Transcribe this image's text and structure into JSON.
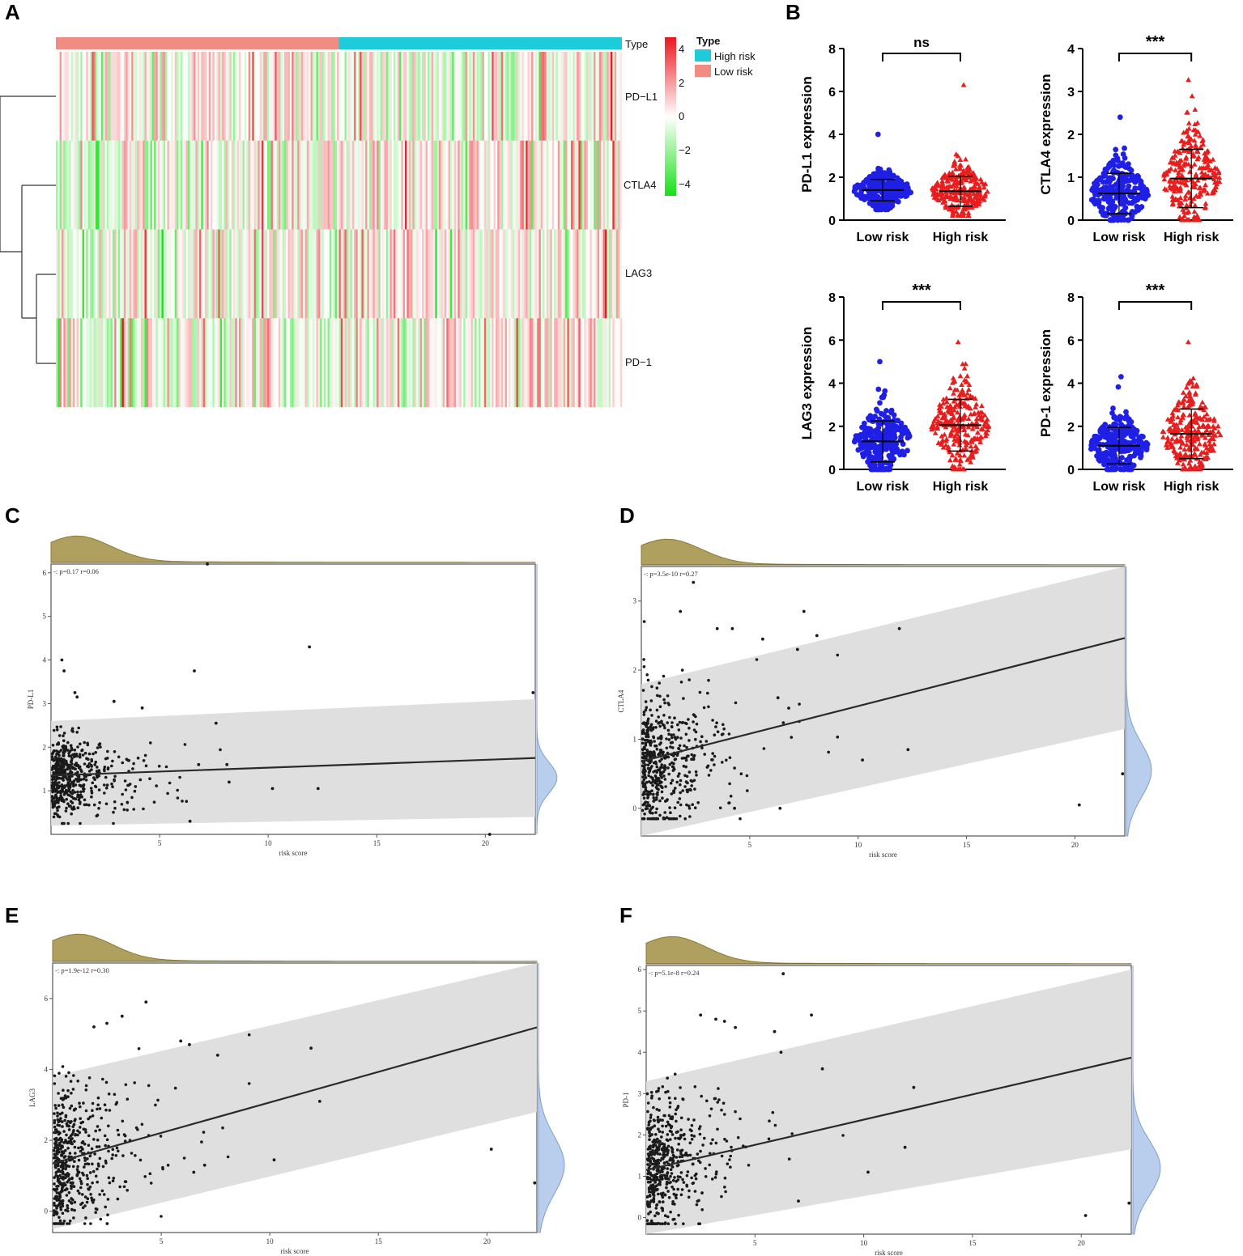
{
  "colors": {
    "low_risk": "#F08C84",
    "high_risk": "#1ECBD8",
    "heat_high": "#E8191E",
    "heat_mid": "#FFFFFF",
    "heat_low": "#18E018",
    "dot_low": "#1F1FE6",
    "dot_high": "#E81E1E",
    "density_top": "#B0A060",
    "density_right": "#B8CEEC",
    "band": "#DCDCDC"
  },
  "chart_data": [
    {
      "panel": "A",
      "type": "heatmap",
      "annotation_row_label": "Type",
      "rows": [
        "PD−L1",
        "CTLA4",
        "LAG3",
        "PD−1"
      ],
      "groups": [
        {
          "name": "Low risk",
          "fraction": 0.5
        },
        {
          "name": "High risk",
          "fraction": 0.5
        }
      ],
      "legend_title": "Type",
      "legend_entries": [
        "High risk",
        "Low risk"
      ],
      "colorbar_ticks": [
        "4",
        "2",
        "0",
        "−2",
        "−4"
      ],
      "colorbar_range": [
        -4.5,
        4.5
      ]
    },
    {
      "panel": "B",
      "type": "scatter",
      "subtype": "dot-plot",
      "ylabel": "PD-L1 expression",
      "categories": [
        "Low risk",
        "High risk"
      ],
      "ylim": [
        0,
        8
      ],
      "yticks": [
        "0",
        "2",
        "4",
        "6",
        "8"
      ],
      "significance": "ns",
      "groups": [
        {
          "name": "Low risk",
          "mean": 1.4,
          "sd": 0.5,
          "min": 0.5,
          "max": 4.0
        },
        {
          "name": "High risk",
          "mean": 1.35,
          "sd": 0.7,
          "min": 0.2,
          "max": 6.3
        }
      ]
    },
    {
      "panel": "B",
      "type": "scatter",
      "subtype": "dot-plot",
      "ylabel": "CTLA4 expression",
      "categories": [
        "Low risk",
        "High risk"
      ],
      "ylim": [
        0,
        4
      ],
      "yticks": [
        "0",
        "1",
        "2",
        "3",
        "4"
      ],
      "significance": "***",
      "groups": [
        {
          "name": "Low risk",
          "mean": 0.62,
          "sd": 0.47,
          "min": 0.0,
          "max": 2.4
        },
        {
          "name": "High risk",
          "mean": 0.97,
          "sd": 0.68,
          "min": 0.0,
          "max": 3.27
        }
      ]
    },
    {
      "panel": "B",
      "type": "scatter",
      "subtype": "dot-plot",
      "ylabel": "LAG3 expression",
      "categories": [
        "Low risk",
        "High risk"
      ],
      "ylim": [
        0,
        8
      ],
      "yticks": [
        "0",
        "2",
        "4",
        "6",
        "8"
      ],
      "significance": "***",
      "groups": [
        {
          "name": "Low risk",
          "mean": 1.3,
          "sd": 0.95,
          "min": 0.0,
          "max": 5.0
        },
        {
          "name": "High risk",
          "mean": 2.05,
          "sd": 1.2,
          "min": 0.0,
          "max": 5.9
        }
      ]
    },
    {
      "panel": "B",
      "type": "scatter",
      "subtype": "dot-plot",
      "ylabel": "PD-1 expression",
      "categories": [
        "Low risk",
        "High risk"
      ],
      "ylim": [
        0,
        8
      ],
      "yticks": [
        "0",
        "2",
        "4",
        "6",
        "8"
      ],
      "significance": "***",
      "groups": [
        {
          "name": "Low risk",
          "mean": 1.1,
          "sd": 0.85,
          "min": 0.0,
          "max": 4.3
        },
        {
          "name": "High risk",
          "mean": 1.65,
          "sd": 1.15,
          "min": 0.0,
          "max": 5.9
        }
      ]
    },
    {
      "panel": "C",
      "type": "scatter",
      "ylabel": "PD-L1",
      "xlabel": "risk score",
      "annotation": "-: p=0.17 r=0.06",
      "xlim": [
        0,
        22.3
      ],
      "ylim": [
        0,
        6.2
      ],
      "xticks": [
        "5",
        "10",
        "15",
        "20"
      ],
      "yticks": [
        "1",
        "2",
        "3",
        "4",
        "5",
        "6"
      ],
      "fit": {
        "intercept": 1.35,
        "slope": 0.018
      },
      "band": {
        "lower_intercept": 0.2,
        "upper_intercept": 2.6,
        "lower_at_xmax": 0.4,
        "upper_at_xmax": 3.1
      },
      "cloud": {
        "x_scale": 1.6,
        "y_center": 1.3,
        "y_sd": 0.45
      },
      "outliers": [
        [
          7.2,
          6.2
        ],
        [
          11.9,
          4.3
        ],
        [
          6.6,
          3.75
        ],
        [
          0.5,
          4.0
        ],
        [
          0.6,
          3.75
        ],
        [
          1.1,
          3.25
        ],
        [
          1.2,
          3.15
        ],
        [
          2.9,
          3.05
        ],
        [
          4.2,
          2.9
        ],
        [
          7.6,
          2.55
        ],
        [
          8.1,
          1.6
        ],
        [
          10.2,
          1.05
        ],
        [
          12.3,
          1.05
        ],
        [
          8.2,
          1.2
        ],
        [
          20.2,
          0.0
        ],
        [
          22.2,
          3.25
        ],
        [
          6.4,
          0.3
        ],
        [
          6.8,
          1.6
        ]
      ]
    },
    {
      "panel": "D",
      "type": "scatter",
      "ylabel": "CTLA4",
      "xlabel": "risk score",
      "annotation": "-: p=3.5e-10 r=0.27",
      "xlim": [
        0,
        22.3
      ],
      "ylim": [
        -0.4,
        3.5
      ],
      "xticks": [
        "5",
        "10",
        "15",
        "20"
      ],
      "yticks": [
        "0",
        "1",
        "2",
        "3"
      ],
      "fit": {
        "intercept": 0.68,
        "slope": 0.08
      },
      "band": {
        "lower_intercept": -0.45,
        "upper_intercept": 1.8,
        "lower_at_xmax": 1.15,
        "upper_at_xmax": 3.7
      },
      "cloud": {
        "x_scale": 1.5,
        "y_center": 0.55,
        "y_sd": 0.5
      },
      "outliers": [
        [
          2.4,
          3.27
        ],
        [
          1.8,
          2.85
        ],
        [
          7.5,
          2.85
        ],
        [
          11.9,
          2.6
        ],
        [
          3.5,
          2.6
        ],
        [
          4.2,
          2.6
        ],
        [
          5.6,
          2.45
        ],
        [
          8.1,
          2.5
        ],
        [
          7.2,
          2.3
        ],
        [
          6.3,
          1.6
        ],
        [
          6.8,
          1.45
        ],
        [
          10.2,
          0.7
        ],
        [
          12.3,
          0.85
        ],
        [
          20.2,
          0.05
        ],
        [
          22.2,
          0.5
        ],
        [
          6.4,
          0.0
        ],
        [
          4.3,
          0.0
        ]
      ]
    },
    {
      "panel": "E",
      "type": "scatter",
      "ylabel": "LAG3",
      "xlabel": "risk score",
      "annotation": "-: p=1.9e-12 r=0.30",
      "xlim": [
        0,
        22.3
      ],
      "ylim": [
        -0.6,
        7.0
      ],
      "xticks": [
        "5",
        "10",
        "15",
        "20"
      ],
      "yticks": [
        "0",
        "2",
        "4",
        "6"
      ],
      "fit": {
        "intercept": 1.35,
        "slope": 0.172
      },
      "band": {
        "lower_intercept": -0.5,
        "upper_intercept": 3.8,
        "lower_at_xmax": 2.8,
        "upper_at_xmax": 7.0
      },
      "cloud": {
        "x_scale": 1.6,
        "y_center": 1.3,
        "y_sd": 1.05
      },
      "outliers": [
        [
          4.3,
          5.9
        ],
        [
          3.2,
          5.5
        ],
        [
          2.5,
          5.3
        ],
        [
          1.9,
          5.2
        ],
        [
          5.9,
          4.8
        ],
        [
          11.9,
          4.6
        ],
        [
          7.6,
          4.4
        ],
        [
          6.3,
          4.7
        ],
        [
          12.3,
          3.1
        ],
        [
          10.2,
          1.45
        ],
        [
          20.2,
          1.75
        ],
        [
          22.2,
          0.8
        ],
        [
          6.5,
          1.1
        ],
        [
          7.0,
          1.3
        ]
      ]
    },
    {
      "panel": "F",
      "type": "scatter",
      "ylabel": "PD-1",
      "xlabel": "risk score",
      "annotation": "-: p=5.1e-8 r=0.24",
      "xlim": [
        0,
        22.3
      ],
      "ylim": [
        -0.4,
        6.1
      ],
      "xticks": [
        "5",
        "10",
        "15",
        "20"
      ],
      "yticks": [
        "0",
        "1",
        "2",
        "3",
        "4",
        "5",
        "6"
      ],
      "fit": {
        "intercept": 1.15,
        "slope": 0.122
      },
      "band": {
        "lower_intercept": -0.45,
        "upper_intercept": 3.3,
        "lower_at_xmax": 1.65,
        "upper_at_xmax": 6.0
      },
      "cloud": {
        "x_scale": 1.6,
        "y_center": 1.2,
        "y_sd": 0.85
      },
      "outliers": [
        [
          6.3,
          5.9
        ],
        [
          7.6,
          4.9
        ],
        [
          2.5,
          4.9
        ],
        [
          3.2,
          4.8
        ],
        [
          3.6,
          4.75
        ],
        [
          4.1,
          4.6
        ],
        [
          5.9,
          4.5
        ],
        [
          6.2,
          4.0
        ],
        [
          8.1,
          3.6
        ],
        [
          12.3,
          3.15
        ],
        [
          11.9,
          1.7
        ],
        [
          10.2,
          1.1
        ],
        [
          20.2,
          0.05
        ],
        [
          22.2,
          0.35
        ],
        [
          7.0,
          0.4
        ]
      ]
    }
  ]
}
